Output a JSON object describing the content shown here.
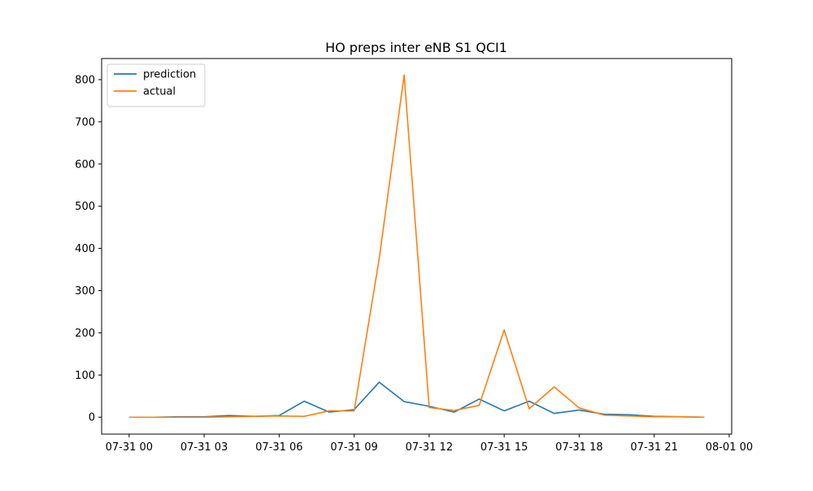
{
  "chart_data": {
    "type": "line",
    "title": "HO preps inter eNB S1 QCI1",
    "xlabel": "",
    "ylabel": "",
    "x": [
      0,
      1,
      2,
      3,
      4,
      5,
      6,
      7,
      8,
      9,
      10,
      11,
      12,
      13,
      14,
      15,
      16,
      17,
      18,
      19,
      20,
      21,
      22,
      23
    ],
    "xlim": [
      -1.1,
      24.1
    ],
    "ylim": [
      -40,
      850
    ],
    "x_ticks": [
      {
        "value": 0,
        "label": "07-31 00"
      },
      {
        "value": 3,
        "label": "07-31 03"
      },
      {
        "value": 6,
        "label": "07-31 06"
      },
      {
        "value": 9,
        "label": "07-31 09"
      },
      {
        "value": 12,
        "label": "07-31 12"
      },
      {
        "value": 15,
        "label": "07-31 15"
      },
      {
        "value": 18,
        "label": "07-31 18"
      },
      {
        "value": 21,
        "label": "07-31 21"
      },
      {
        "value": 24,
        "label": "08-01 00"
      }
    ],
    "y_ticks": [
      0,
      100,
      200,
      300,
      400,
      500,
      600,
      700,
      800
    ],
    "grid": false,
    "legend_position": "top-left",
    "series": [
      {
        "name": "prediction",
        "color": "#1f77b4",
        "values": [
          0,
          0,
          1,
          1,
          4,
          2,
          4,
          38,
          12,
          18,
          83,
          37,
          26,
          12,
          43,
          15,
          38,
          9,
          17,
          7,
          6,
          2,
          1,
          0
        ]
      },
      {
        "name": "actual",
        "color": "#ff7f0e",
        "values": [
          0,
          0,
          0,
          0,
          1,
          2,
          3,
          2,
          15,
          15,
          375,
          811,
          23,
          16,
          28,
          207,
          20,
          72,
          22,
          5,
          3,
          1,
          1,
          0
        ]
      }
    ]
  }
}
